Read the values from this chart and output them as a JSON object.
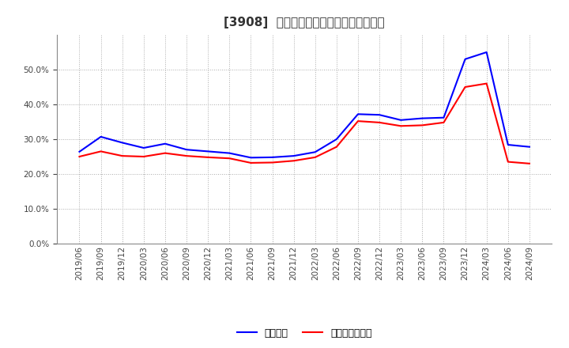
{
  "title": "[3908]  固定比率、固定長期適合率の推移",
  "legend_labels": [
    "固定比率",
    "固定長期適合率"
  ],
  "line_colors": [
    "#0000ff",
    "#ff0000"
  ],
  "background_color": "#ffffff",
  "plot_bg_color": "#ffffff",
  "grid_color": "#aaaaaa",
  "ylim": [
    0.0,
    0.6
  ],
  "yticks": [
    0.0,
    0.1,
    0.2,
    0.3,
    0.4,
    0.5
  ],
  "x_labels": [
    "2019/06",
    "2019/09",
    "2019/12",
    "2020/03",
    "2020/06",
    "2020/09",
    "2020/12",
    "2021/03",
    "2021/06",
    "2021/09",
    "2021/12",
    "2022/03",
    "2022/06",
    "2022/09",
    "2022/12",
    "2023/03",
    "2023/06",
    "2023/09",
    "2023/12",
    "2024/03",
    "2024/06",
    "2024/09"
  ],
  "fixed_ratio": [
    0.264,
    0.307,
    0.29,
    0.275,
    0.287,
    0.27,
    0.265,
    0.26,
    0.247,
    0.248,
    0.252,
    0.263,
    0.3,
    0.372,
    0.37,
    0.355,
    0.36,
    0.362,
    0.53,
    0.55,
    0.284,
    0.278
  ],
  "fixed_long_ratio": [
    0.25,
    0.265,
    0.252,
    0.25,
    0.26,
    0.252,
    0.248,
    0.245,
    0.232,
    0.233,
    0.238,
    0.248,
    0.278,
    0.352,
    0.348,
    0.338,
    0.34,
    0.348,
    0.45,
    0.46,
    0.235,
    0.23
  ],
  "title_fontsize": 11,
  "tick_fontsize": 7.5,
  "legend_fontsize": 9
}
